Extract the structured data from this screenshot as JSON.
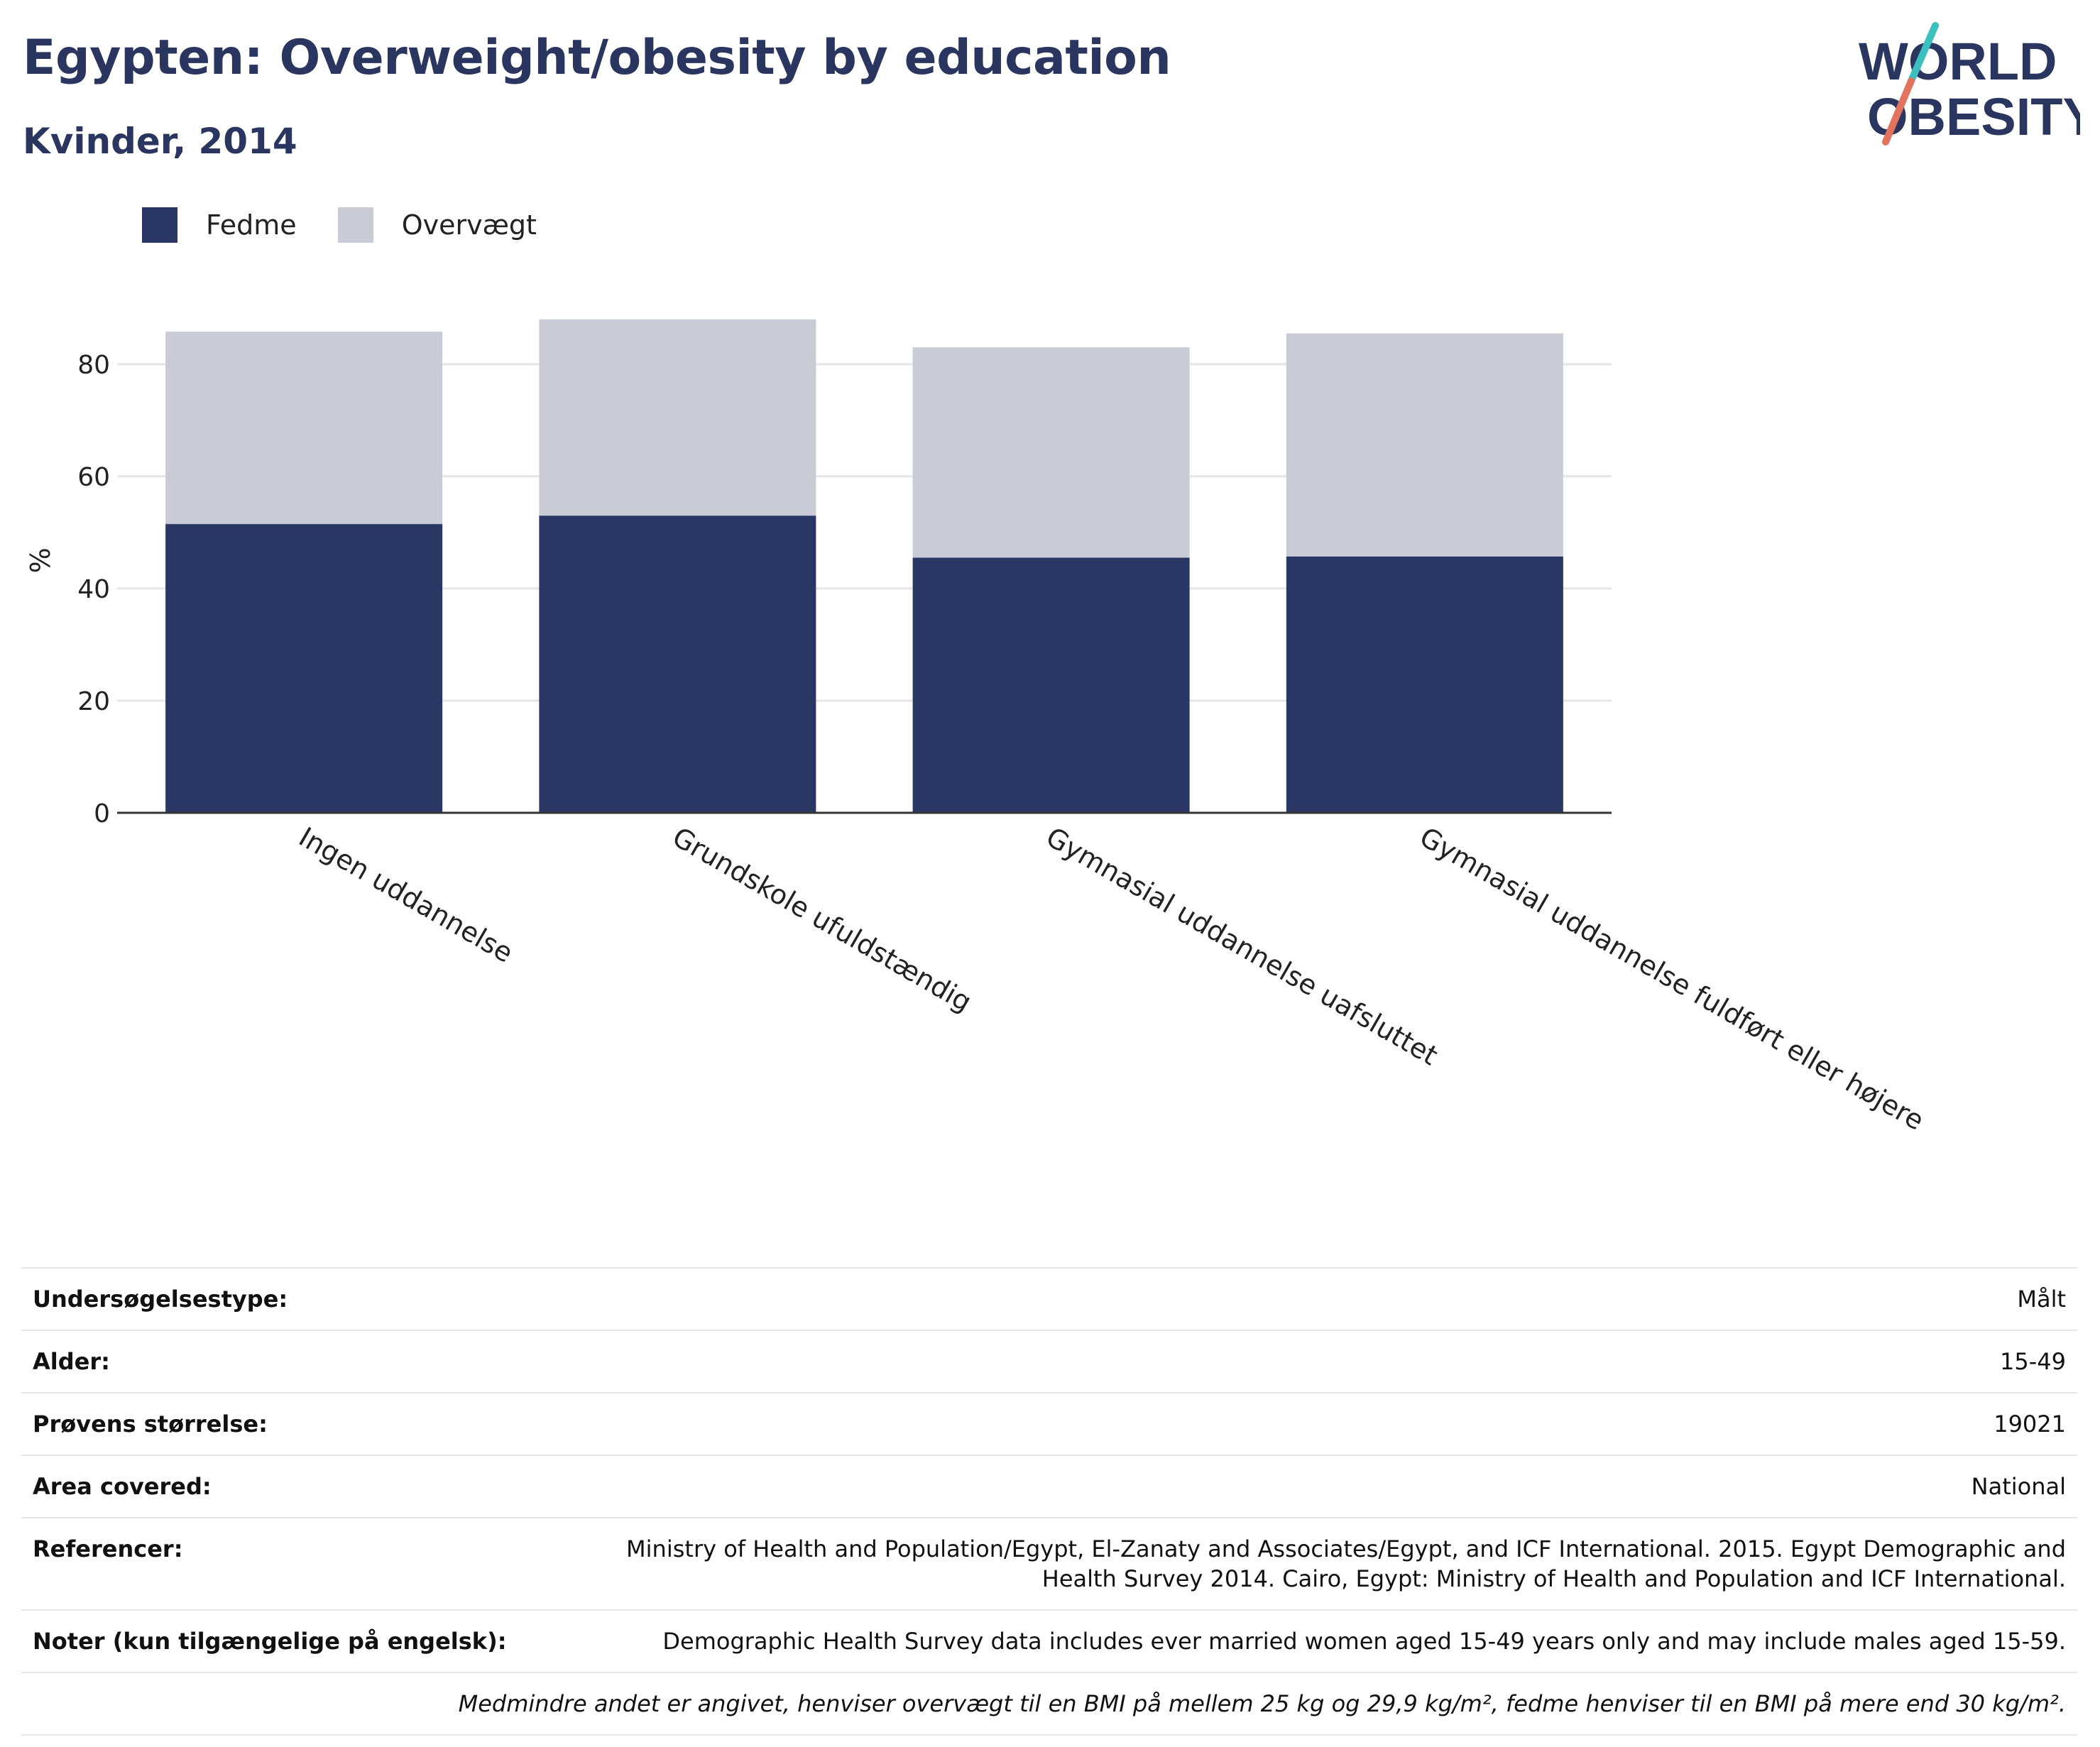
{
  "header": {
    "title": "Egypten: Overweight/obesity by education",
    "subtitle": "Kvinder, 2014"
  },
  "logo": {
    "line1": "WORLD",
    "line2": "OBESITY"
  },
  "colors": {
    "obesity": "#2a3663",
    "overweight": "#c9ccd7",
    "text": "#2a3560",
    "grid": "#e6e6e6",
    "axis": "#333333"
  },
  "chart_data": {
    "type": "bar",
    "stacked": true,
    "categories": [
      "Ingen uddannelse",
      "Grundskole ufuldstændig",
      "Gymnasial uddannelse uafsluttet",
      "Gymnasial uddannelse fuldført eller højere"
    ],
    "series": [
      {
        "name": "Fedme",
        "values": [
          51.5,
          53.0,
          45.5,
          45.7
        ]
      },
      {
        "name": "Overvægt",
        "values": [
          34.3,
          35.0,
          37.5,
          39.8
        ]
      }
    ],
    "ylabel": "%",
    "xlabel": "",
    "ylim": [
      0,
      90
    ],
    "yticks": [
      0,
      20,
      40,
      60,
      80
    ],
    "grid": true,
    "legend": "top-left"
  },
  "info": {
    "rows": [
      {
        "key": "Undersøgelsestype:",
        "value": "Målt"
      },
      {
        "key": "Alder:",
        "value": "15-49"
      },
      {
        "key": "Prøvens størrelse:",
        "value": "19021"
      },
      {
        "key": "Area covered:",
        "value": "National"
      },
      {
        "key": "Referencer:",
        "value": "Ministry of Health and Population/Egypt, El-Zanaty and Associates/Egypt, and ICF International. 2015. Egypt Demographic and Health Survey 2014. Cairo, Egypt: Ministry of Health and Population and ICF International."
      },
      {
        "key": "Noter (kun tilgængelige på engelsk):",
        "value": "Demographic Health Survey data includes ever married women aged 15-49 years only and may include males aged 15-59."
      }
    ],
    "footnote": "Medmindre andet er angivet, henviser overvægt til en BMI på mellem 25 kg og 29,9 kg/m², fedme henviser til en BMI på mere end 30 kg/m²."
  }
}
